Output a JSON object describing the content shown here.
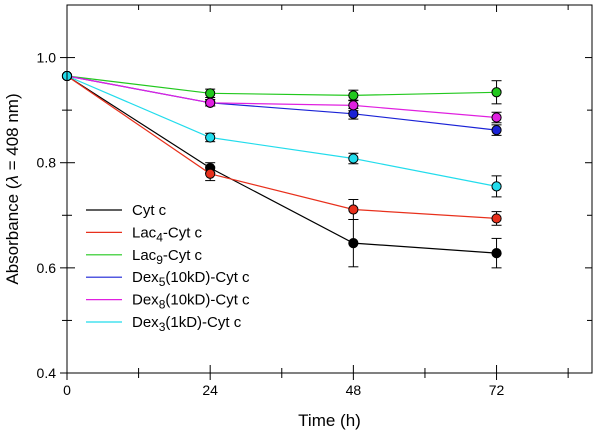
{
  "chart_data": {
    "type": "line",
    "title": "",
    "xlabel": "Time (h)",
    "ylabel_prefix": "Absorbance (",
    "ylabel_lambda": "λ",
    "ylabel_suffix": " = 408 nm)",
    "xlim": [
      0,
      88
    ],
    "ylim": [
      0.4,
      1.1
    ],
    "x_ticks": [
      0,
      24,
      48,
      72
    ],
    "x_tick_labels": [
      "0",
      "24",
      "48",
      "72"
    ],
    "x_minor_ticks": [
      12,
      36,
      60,
      84
    ],
    "y_ticks": [
      0.4,
      0.6,
      0.8,
      1.0
    ],
    "y_tick_labels": [
      "0.4",
      "0.6",
      "0.8",
      "1.0"
    ],
    "y_minor_ticks": [
      0.5,
      0.7,
      0.9
    ],
    "grid": false,
    "legend_position": "bottom-left",
    "x": [
      0,
      24,
      48,
      72
    ],
    "series": [
      {
        "name": "Cyt c",
        "legend": {
          "base": "Cyt c",
          "sub": "",
          "suffix": ""
        },
        "color": "#000000",
        "values": [
          0.965,
          0.79,
          0.647,
          0.628
        ],
        "errors": [
          0,
          0.01,
          0.045,
          0.028
        ]
      },
      {
        "name": "Lac4-Cyt c",
        "legend": {
          "base": "Lac",
          "sub": "4",
          "suffix": "-Cyt c"
        },
        "color": "#e8301c",
        "values": [
          0.965,
          0.779,
          0.711,
          0.694
        ],
        "errors": [
          0,
          0.013,
          0.019,
          0.013
        ]
      },
      {
        "name": "Lac9-Cyt c",
        "legend": {
          "base": "Lac",
          "sub": "9",
          "suffix": "-Cyt c"
        },
        "color": "#22c81e",
        "values": [
          0.965,
          0.932,
          0.928,
          0.934
        ],
        "errors": [
          0,
          0.008,
          0.01,
          0.022
        ]
      },
      {
        "name": "Dex5(10kD)-Cyt c",
        "legend": {
          "base": "Dex",
          "sub": "5",
          "suffix": "(10kD)-Cyt c"
        },
        "color": "#1a22d6",
        "values": [
          0.965,
          0.914,
          0.893,
          0.862
        ],
        "errors": [
          0,
          0.006,
          0.01,
          0.01
        ]
      },
      {
        "name": "Dex8(10kD)-Cyt c",
        "legend": {
          "base": "Dex",
          "sub": "8",
          "suffix": "(10kD)-Cyt c"
        },
        "color": "#e020e0",
        "values": [
          0.965,
          0.914,
          0.909,
          0.886
        ],
        "errors": [
          0,
          0.006,
          0.01,
          0.01
        ]
      },
      {
        "name": "Dex3(1kD)-Cyt c",
        "legend": {
          "base": "Dex",
          "sub": "3",
          "suffix": "(1kD)-Cyt c"
        },
        "color": "#22dcec",
        "values": [
          0.965,
          0.848,
          0.808,
          0.755
        ],
        "errors": [
          0,
          0.008,
          0.01,
          0.02
        ]
      }
    ]
  }
}
